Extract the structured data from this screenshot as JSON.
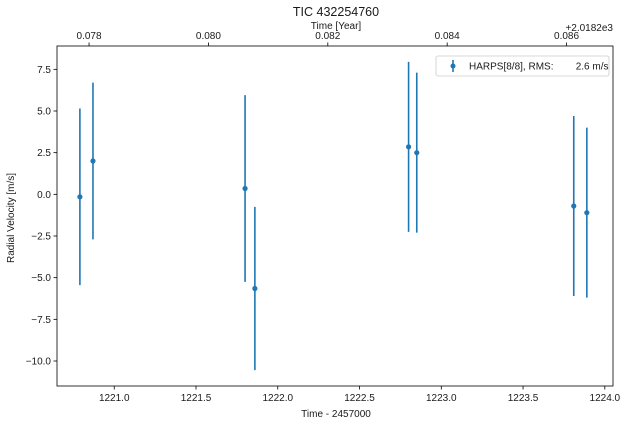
{
  "chart_data": {
    "type": "scatter",
    "title": "TIC 432254760",
    "xlabel": "Time - 2457000",
    "ylabel": "Radial Velocity [m/s]",
    "x2label": "Time [Year]",
    "x2_offset_label": "+2.0182e3",
    "xlim": [
      1220.65,
      1224.05
    ],
    "ylim": [
      -11.5,
      8.9
    ],
    "x_ticks": [
      1221.0,
      1221.5,
      1222.0,
      1222.5,
      1223.0,
      1223.5,
      1224.0
    ],
    "x_tick_labels": [
      "1221.0",
      "1221.5",
      "1222.0",
      "1222.5",
      "1223.0",
      "1223.5",
      "1224.0"
    ],
    "y_ticks": [
      -10.0,
      -7.5,
      -5.0,
      -2.5,
      0.0,
      2.5,
      5.0,
      7.5
    ],
    "y_tick_labels": [
      "−10.0",
      "−7.5",
      "−5.0",
      "−2.5",
      "0.0",
      "2.5",
      "5.0",
      "7.5"
    ],
    "x2_ticks": [
      1220.846,
      1221.576,
      1222.306,
      1223.036,
      1223.766
    ],
    "x2_tick_labels": [
      "0.078",
      "0.080",
      "0.082",
      "0.084",
      "0.086"
    ],
    "grid": false,
    "legend_position": "top-right",
    "color": "#1f77b4",
    "series": [
      {
        "name": "HARPS[8/8], RMS:        2.6 m/s",
        "points": [
          {
            "x": 1220.79,
            "y": -0.15,
            "err": 5.3
          },
          {
            "x": 1220.87,
            "y": 2.0,
            "err": 4.7
          },
          {
            "x": 1221.8,
            "y": 0.35,
            "err": 5.6
          },
          {
            "x": 1221.86,
            "y": -5.65,
            "err": 4.9
          },
          {
            "x": 1222.8,
            "y": 2.85,
            "err": 5.1
          },
          {
            "x": 1222.85,
            "y": 2.5,
            "err": 4.8
          },
          {
            "x": 1223.81,
            "y": -0.7,
            "err": 5.4
          },
          {
            "x": 1223.89,
            "y": -1.1,
            "err": 5.1
          }
        ]
      }
    ]
  }
}
